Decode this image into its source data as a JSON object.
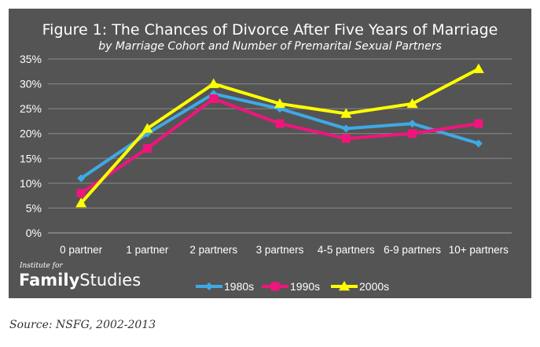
{
  "chart_data": {
    "type": "line",
    "title": "Figure 1: The Chances of Divorce After Five Years of Marriage",
    "subtitle": "by Marriage Cohort and Number of Premarital Sexual Partners",
    "categories": [
      "0 partner",
      "1 partner",
      "2 partners",
      "3 partners",
      "4-5 partners",
      "6-9 partners",
      "10+ partners"
    ],
    "ylim": [
      0,
      35
    ],
    "yticks": [
      0,
      5,
      10,
      15,
      20,
      25,
      30,
      35
    ],
    "ytick_labels": [
      "0%",
      "5%",
      "10%",
      "15%",
      "20%",
      "25%",
      "30%",
      "35%"
    ],
    "grid": true,
    "legend_position": "bottom",
    "series": [
      {
        "name": "1980s",
        "color": "#3fa9e6",
        "marker": "diamond",
        "values": [
          11,
          20,
          28,
          25,
          21,
          22,
          18
        ]
      },
      {
        "name": "1990s",
        "color": "#f0157c",
        "marker": "square",
        "values": [
          8,
          17,
          27,
          22,
          19,
          20,
          22
        ]
      },
      {
        "name": "2000s",
        "color": "#ffff00",
        "marker": "triangle",
        "values": [
          6,
          21,
          30,
          26,
          24,
          26,
          33
        ]
      }
    ]
  },
  "logo": {
    "line1": "Institute for",
    "word1": "Family",
    "word2": "Studies"
  },
  "source": "Source: NSFG, 2002-2013"
}
